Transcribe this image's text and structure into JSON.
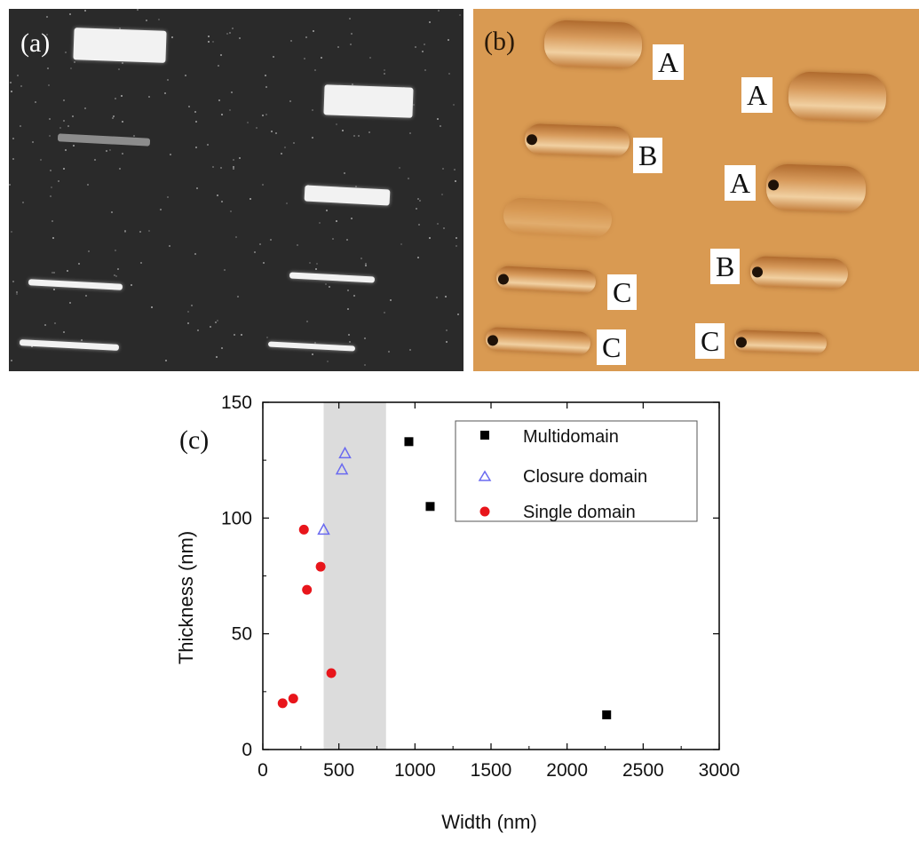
{
  "panel_a": {
    "tag": "(a)"
  },
  "panel_b": {
    "tag": "(b)",
    "labels": [
      "A",
      "A",
      "B",
      "A",
      "B",
      "C",
      "C",
      "C"
    ]
  },
  "chart_data": {
    "type": "scatter",
    "panel_tag": "(c)",
    "xlabel": "Width (nm)",
    "ylabel": "Thickness (nm)",
    "xlim": [
      0,
      3000
    ],
    "ylim": [
      0,
      150
    ],
    "x_ticks": [
      0,
      500,
      1000,
      1500,
      2000,
      2500,
      3000
    ],
    "y_ticks": [
      0,
      50,
      100,
      150
    ],
    "shaded_region": [
      400,
      810
    ],
    "legend_position": "top-right",
    "series": [
      {
        "name": "Multidomain",
        "marker": "square",
        "color": "#000000",
        "x": [
          960,
          1100,
          2260
        ],
        "y": [
          133,
          105,
          15
        ]
      },
      {
        "name": "Closure domain",
        "marker": "triangle-open",
        "color": "#6a6af0",
        "x": [
          400,
          520,
          540
        ],
        "y": [
          95,
          121,
          128
        ]
      },
      {
        "name": "Single domain",
        "marker": "circle",
        "color": "#e8151b",
        "x": [
          130,
          200,
          270,
          290,
          380,
          450
        ],
        "y": [
          20,
          22,
          95,
          69,
          79,
          33
        ]
      }
    ]
  }
}
